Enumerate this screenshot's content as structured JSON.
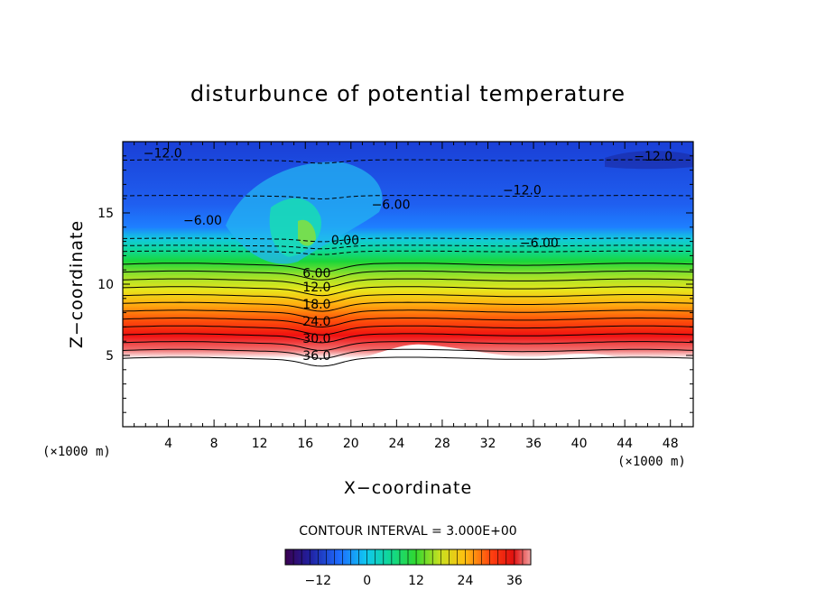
{
  "chart_data": {
    "type": "contour",
    "title": "disturbunce of potential temperature",
    "xlabel": "X−coordinate",
    "ylabel": "Z−coordinate",
    "x_unit_left": "(×1000 m)",
    "x_unit_right": "(×1000 m)",
    "xlim": [
      0,
      50
    ],
    "ylim": [
      0,
      20
    ],
    "x_ticks": [
      "4",
      "8",
      "12",
      "16",
      "20",
      "24",
      "28",
      "32",
      "36",
      "40",
      "44",
      "48"
    ],
    "y_ticks": [
      "5",
      "10",
      "15"
    ],
    "terrain_top_km": 4.5,
    "contour_interval_text": "CONTOUR INTERVAL = 3.000E+00",
    "contour_interval": 3.0,
    "colorbar": {
      "range": [
        -20,
        40
      ],
      "ticks": [
        "−12",
        "0",
        "12",
        "24",
        "36"
      ]
    },
    "contour_labels": [
      {
        "text": "−12.0",
        "x": 3.5,
        "z": 19.2
      },
      {
        "text": "−12.0",
        "x": 46.5,
        "z": 19.0
      },
      {
        "text": "−12.0",
        "x": 35.0,
        "z": 16.6
      },
      {
        "text": "−6.00",
        "x": 23.5,
        "z": 15.6
      },
      {
        "text": "−6.00",
        "x": 7.0,
        "z": 14.5
      },
      {
        "text": "−6.00",
        "x": 36.5,
        "z": 12.9
      },
      {
        "text": "0.00",
        "x": 19.5,
        "z": 13.1
      },
      {
        "text": "6.00",
        "x": 17.0,
        "z": 10.8
      },
      {
        "text": "12.0",
        "x": 17.0,
        "z": 9.8
      },
      {
        "text": "18.0",
        "x": 17.0,
        "z": 8.6
      },
      {
        "text": "24.0",
        "x": 17.0,
        "z": 7.4
      },
      {
        "text": "30.0",
        "x": 17.0,
        "z": 6.2
      },
      {
        "text": "36.0",
        "x": 17.0,
        "z": 5.0
      }
    ]
  }
}
